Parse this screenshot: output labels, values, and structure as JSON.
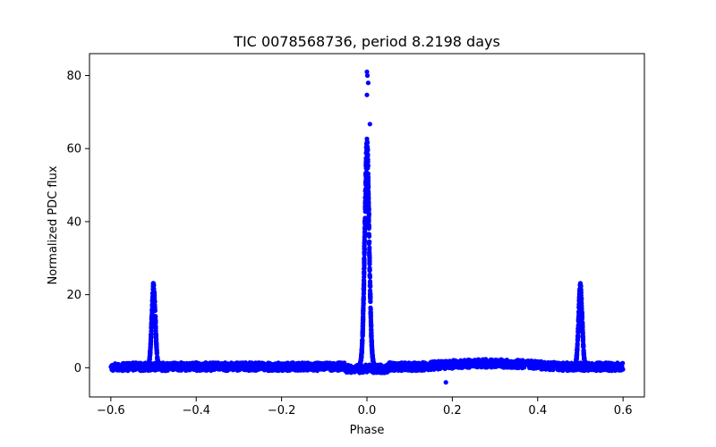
{
  "chart_data": {
    "type": "scatter",
    "title": "TIC 0078568736, period 8.2198 days",
    "xlabel": "Phase",
    "ylabel": "Normalized PDC flux",
    "xlim": [
      -0.65,
      0.65
    ],
    "ylim": [
      -8,
      86
    ],
    "xticks": [
      -0.6,
      -0.4,
      -0.2,
      0.0,
      0.2,
      0.4,
      0.6
    ],
    "xtick_labels": [
      "−0.6",
      "−0.4",
      "−0.2",
      "0.0",
      "0.2",
      "0.4",
      "0.6"
    ],
    "yticks": [
      0,
      20,
      40,
      60,
      80
    ],
    "ytick_labels": [
      "0",
      "20",
      "40",
      "60",
      "80"
    ],
    "grid": false,
    "marker_color": "#0000ff",
    "series": [
      {
        "name": "flux",
        "description": "phase-folded light curve: baseline near 0, primary peak at phase 0 reaching ~81, secondary peaks at phase ±0.5 reaching ~23",
        "features": {
          "baseline_flux": 0.5,
          "baseline_range": [
            -0.6,
            0.6
          ],
          "primary_peak": {
            "phase": 0.0,
            "max_flux": 81,
            "width": 0.01
          },
          "secondary_peaks": [
            {
              "phase": -0.5,
              "max_flux": 23.5,
              "width": 0.008
            },
            {
              "phase": 0.5,
              "max_flux": 23.5,
              "width": 0.008
            }
          ],
          "outliers": [
            {
              "x": 0.0,
              "y": 81.0
            },
            {
              "x": 0.001,
              "y": 80.0
            },
            {
              "x": 0.003,
              "y": 78.0
            },
            {
              "x": 0.0,
              "y": 74.7
            },
            {
              "x": 0.007,
              "y": 66.7
            },
            {
              "x": 0.185,
              "y": -4.0
            }
          ]
        }
      }
    ]
  }
}
